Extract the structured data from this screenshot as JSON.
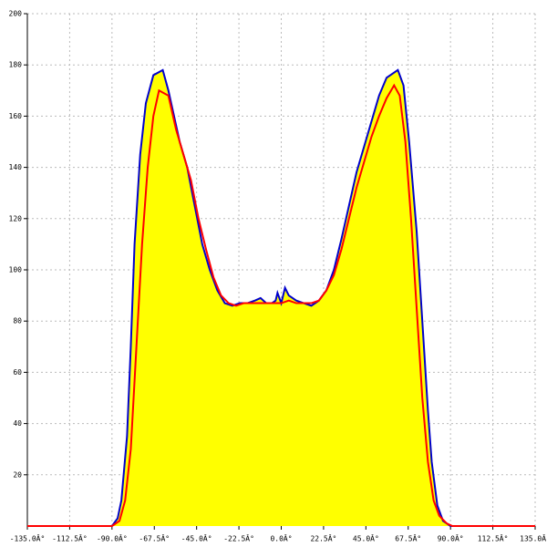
{
  "chart_data": {
    "type": "area-line",
    "xlim": [
      -135,
      135
    ],
    "ylim": [
      0,
      200
    ],
    "xticks": [
      {
        "value": -135,
        "label": "-135.0Â°"
      },
      {
        "value": -112.5,
        "label": "-112.5Â°"
      },
      {
        "value": -90,
        "label": "-90.0Â°"
      },
      {
        "value": -67.5,
        "label": "-67.5Â°"
      },
      {
        "value": -45,
        "label": "-45.0Â°"
      },
      {
        "value": -22.5,
        "label": "-22.5Â°"
      },
      {
        "value": 0,
        "label": "0.0Â°"
      },
      {
        "value": 22.5,
        "label": "22.5Â°"
      },
      {
        "value": 45,
        "label": "45.0Â°"
      },
      {
        "value": 67.5,
        "label": "67.5Â°"
      },
      {
        "value": 90,
        "label": "90.0Â°"
      },
      {
        "value": 112.5,
        "label": "112.5Â°"
      },
      {
        "value": 135,
        "label": "135.0Â°"
      }
    ],
    "yticks": [
      20,
      40,
      60,
      80,
      100,
      120,
      140,
      160,
      180,
      200
    ],
    "grid": true,
    "series": [
      {
        "color": "#0000cc",
        "fill": "#ffff00",
        "x": [
          -135,
          -90,
          -87,
          -85,
          -82,
          -80,
          -78,
          -75,
          -72,
          -68,
          -63,
          -60,
          -57,
          -54,
          -50,
          -46,
          -42,
          -38,
          -34,
          -30,
          -26,
          -22,
          -18,
          -14,
          -11,
          -8,
          -5,
          -3,
          -2,
          0,
          2,
          4,
          8,
          12,
          16,
          20,
          24,
          28,
          32,
          36,
          40,
          44,
          48,
          52,
          56,
          62,
          65,
          68,
          72,
          75,
          78,
          80,
          83,
          86,
          90,
          135
        ],
        "values": [
          0,
          0,
          3,
          10,
          35,
          70,
          110,
          145,
          165,
          176,
          178,
          170,
          160,
          150,
          140,
          125,
          110,
          100,
          92,
          87,
          86,
          87,
          87,
          88,
          89,
          87,
          87,
          88,
          91,
          87,
          93,
          90,
          88,
          87,
          86,
          88,
          92,
          100,
          112,
          125,
          138,
          148,
          158,
          168,
          175,
          178,
          172,
          150,
          115,
          80,
          45,
          25,
          8,
          2,
          0,
          0
        ]
      },
      {
        "color": "#ff0000",
        "x": [
          -135,
          -90,
          -86,
          -83,
          -80,
          -77,
          -74,
          -71,
          -68,
          -65,
          -60,
          -56,
          -52,
          -48,
          -44,
          -40,
          -36,
          -32,
          -28,
          -24,
          -20,
          -16,
          -12,
          -8,
          -4,
          0,
          4,
          8,
          12,
          16,
          20,
          24,
          28,
          32,
          36,
          40,
          44,
          48,
          52,
          56,
          60,
          63,
          66,
          69,
          72,
          75,
          78,
          81,
          84,
          88,
          91,
          135
        ],
        "values": [
          0,
          0,
          2,
          10,
          30,
          70,
          110,
          140,
          160,
          170,
          168,
          155,
          145,
          135,
          120,
          108,
          97,
          90,
          87,
          86,
          87,
          87,
          87,
          87,
          87,
          87,
          88,
          87,
          87,
          87,
          88,
          92,
          98,
          108,
          120,
          132,
          142,
          152,
          160,
          167,
          172,
          168,
          150,
          120,
          85,
          50,
          25,
          10,
          4,
          1,
          0,
          0
        ]
      }
    ]
  }
}
